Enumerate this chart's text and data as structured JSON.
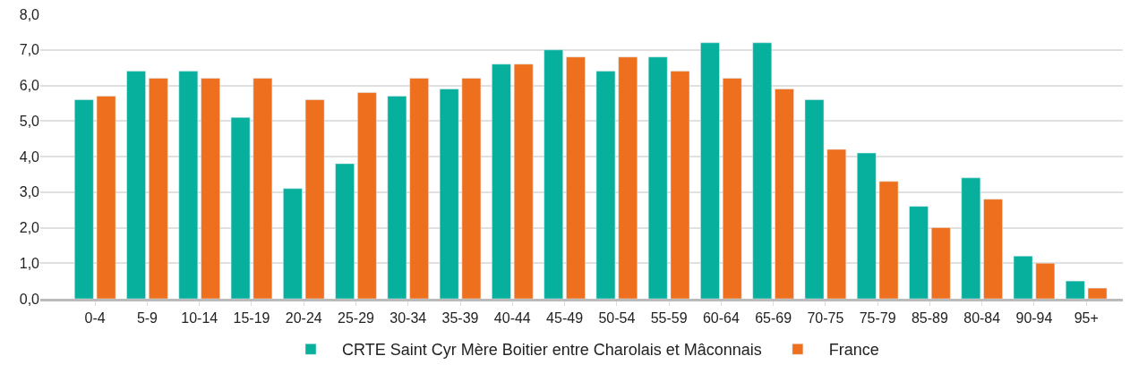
{
  "chart_data": {
    "type": "bar",
    "categories": [
      "0-4",
      "5-9",
      "10-14",
      "15-19",
      "20-24",
      "25-29",
      "30-34",
      "35-39",
      "40-44",
      "45-49",
      "50-54",
      "55-59",
      "60-64",
      "65-69",
      "70-75",
      "75-79",
      "85-89",
      "80-84",
      "90-94",
      "95+"
    ],
    "series": [
      {
        "name": "CRTE Saint Cyr Mère Boitier entre Charolais et Mâconnais",
        "color": "#06b09c",
        "values": [
          5.6,
          6.4,
          6.4,
          5.1,
          3.1,
          3.8,
          5.7,
          5.9,
          6.6,
          7.0,
          6.4,
          6.8,
          7.2,
          7.2,
          5.6,
          4.1,
          2.6,
          3.4,
          1.2,
          0.5
        ]
      },
      {
        "name": "France",
        "color": "#ee701e",
        "values": [
          5.7,
          6.2,
          6.2,
          6.2,
          5.6,
          5.8,
          6.2,
          6.2,
          6.6,
          6.8,
          6.8,
          6.4,
          6.2,
          5.9,
          4.2,
          3.3,
          2.0,
          2.8,
          1.0,
          0.3
        ]
      }
    ],
    "ylim": [
      0,
      8
    ],
    "yticks": [
      {
        "value": 0,
        "label": "0,0"
      },
      {
        "value": 1,
        "label": "1,0"
      },
      {
        "value": 2,
        "label": "2,0"
      },
      {
        "value": 3,
        "label": "3,0"
      },
      {
        "value": 4,
        "label": "4,0"
      },
      {
        "value": 5,
        "label": "5,0"
      },
      {
        "value": 6,
        "label": "6,0"
      },
      {
        "value": 7,
        "label": "7,0"
      },
      {
        "value": 8,
        "label": "8,0"
      }
    ],
    "grid": "y",
    "legend": "bottom"
  }
}
